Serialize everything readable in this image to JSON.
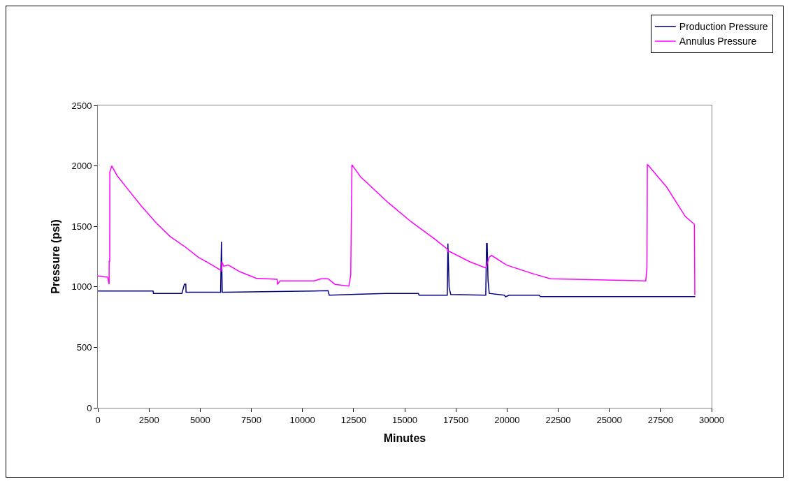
{
  "chart_data": {
    "type": "line",
    "xlabel": "Minutes",
    "ylabel": "Pressure (psi)",
    "xlim": [
      0,
      30000
    ],
    "xticks": [
      0,
      2500,
      5000,
      7500,
      10000,
      12500,
      15000,
      17500,
      20000,
      22500,
      25000,
      27500,
      30000
    ],
    "ylim": [
      0,
      2500
    ],
    "yticks": [
      0,
      500,
      1000,
      1500,
      2000,
      2500
    ],
    "grid": false,
    "legend": "top right",
    "marker": "none",
    "line_style": "solid",
    "series": [
      {
        "name": "Production Pressure",
        "color": "#000080",
        "x": [
          0,
          2700,
          2720,
          4110,
          4230,
          4300,
          4310,
          6000,
          6040,
          6080,
          6210,
          10570,
          11250,
          11310,
          14090,
          15670,
          15700,
          17080,
          17110,
          17170,
          17250,
          18960,
          19000,
          19030,
          19070,
          19130,
          19870,
          19930,
          20100,
          21570,
          21630,
          29200
        ],
        "values": [
          965,
          965,
          946,
          946,
          1022,
          1022,
          955,
          955,
          1372,
          955,
          955,
          965,
          968,
          931,
          946,
          946,
          931,
          931,
          1358,
          993,
          937,
          931,
          1358,
          1358,
          1058,
          946,
          931,
          918,
          931,
          931,
          920,
          920
        ]
      },
      {
        "name": "Annulus Pressure",
        "color": "#ff00ff",
        "x": [
          0,
          30,
          480,
          550,
          552,
          580,
          585,
          680,
          940,
          1510,
          2130,
          2870,
          3550,
          4230,
          4910,
          5590,
          6040,
          6060,
          6150,
          6380,
          6950,
          7740,
          8760,
          8780,
          8900,
          10570,
          10740,
          10910,
          11250,
          11590,
          12270,
          12360,
          12420,
          12840,
          14200,
          15330,
          16470,
          17090,
          17100,
          17200,
          18170,
          18960,
          19130,
          19240,
          19980,
          21340,
          22130,
          26780,
          26840,
          26860,
          27800,
          28710,
          29160,
          29180
        ],
        "values": [
          1090,
          1090,
          1080,
          1022,
          1213,
          1213,
          1950,
          2000,
          1920,
          1798,
          1667,
          1526,
          1414,
          1335,
          1245,
          1180,
          1133,
          1208,
          1170,
          1180,
          1124,
          1071,
          1063,
          1020,
          1050,
          1049,
          1058,
          1067,
          1067,
          1021,
          1006,
          1096,
          2010,
          1910,
          1695,
          1536,
          1395,
          1311,
          1292,
          1292,
          1208,
          1156,
          1245,
          1260,
          1180,
          1105,
          1067,
          1049,
          1161,
          2013,
          1826,
          1583,
          1517,
          931
        ]
      }
    ]
  }
}
